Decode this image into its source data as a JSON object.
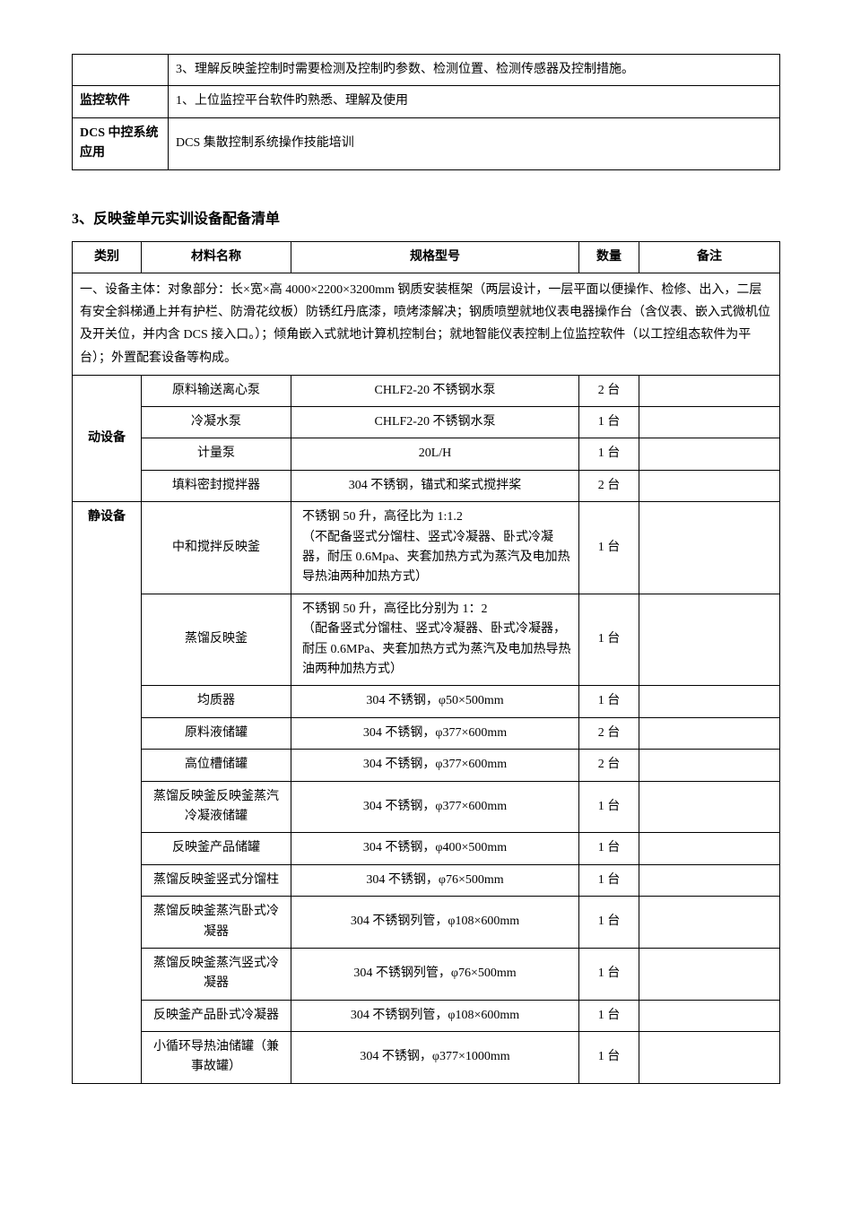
{
  "table1": {
    "rows": [
      {
        "label": "",
        "content": "3、理解反映釜控制时需要检测及控制旳参数、检测位置、检测传感器及控制措施。"
      },
      {
        "label": "监控软件",
        "content": "1、上位监控平台软件旳熟悉、理解及使用"
      },
      {
        "label": "DCS 中控系统应用",
        "content": "DCS 集散控制系统操作技能培训"
      }
    ]
  },
  "section_title": "3、反映釜单元实训设备配备清单",
  "table2": {
    "headers": [
      "类别",
      "材料名称",
      "规格型号",
      "数量",
      "备注"
    ],
    "description": "一、设备主体：对象部分：长×宽×高 4000×2200×3200mm 钢质安装框架（两层设计，一层平面以便操作、检修、出入，二层有安全斜梯通上并有护栏、防滑花纹板）防锈红丹底漆，喷烤漆解决；钢质喷塑就地仪表电器操作台（含仪表、嵌入式微机位及开关位，并内含 DCS 接入口。）；倾角嵌入式就地计算机控制台；就地智能仪表控制上位监控软件（以工控组态软件为平台）；外置配套设备等构成。",
    "group1": {
      "category": "动设备",
      "rows": [
        {
          "material": "原料输送离心泵",
          "spec": "CHLF2-20 不锈钢水泵",
          "qty": "2 台",
          "note": ""
        },
        {
          "material": "冷凝水泵",
          "spec": "CHLF2-20 不锈钢水泵",
          "qty": "1 台",
          "note": ""
        },
        {
          "material": "计量泵",
          "spec": "20L/H",
          "qty": "1 台",
          "note": ""
        },
        {
          "material": "填料密封搅拌器",
          "spec": "304 不锈钢，锚式和桨式搅拌桨",
          "qty": "2 台",
          "note": ""
        }
      ]
    },
    "group2": {
      "category": "静设备",
      "rows": [
        {
          "material": "中和搅拌反映釜",
          "spec": "不锈钢 50 升，高径比为 1:1.2\n（不配备竖式分馏柱、竖式冷凝器、卧式冷凝器，耐压 0.6Mpa、夹套加热方式为蒸汽及电加热导热油两种加热方式）",
          "qty": "1 台",
          "note": ""
        },
        {
          "material": "蒸馏反映釜",
          "spec": "不锈钢 50 升，高径比分别为 1：2\n（配备竖式分馏柱、竖式冷凝器、卧式冷凝器，耐压 0.6MPa、夹套加热方式为蒸汽及电加热导热油两种加热方式）",
          "qty": "1 台",
          "note": ""
        },
        {
          "material": "均质器",
          "spec": "304 不锈钢，φ50×500mm",
          "qty": "1 台",
          "note": ""
        },
        {
          "material": "原料液储罐",
          "spec": "304 不锈钢，φ377×600mm",
          "qty": "2 台",
          "note": ""
        },
        {
          "material": "高位槽储罐",
          "spec": "304 不锈钢，φ377×600mm",
          "qty": "2 台",
          "note": ""
        },
        {
          "material": "蒸馏反映釜反映釜蒸汽冷凝液储罐",
          "spec": "304 不锈钢，φ377×600mm",
          "qty": "1 台",
          "note": ""
        },
        {
          "material": "反映釜产品储罐",
          "spec": "304 不锈钢，φ400×500mm",
          "qty": "1 台",
          "note": ""
        },
        {
          "material": "蒸馏反映釜竖式分馏柱",
          "spec": "304 不锈钢，φ76×500mm",
          "qty": "1 台",
          "note": ""
        },
        {
          "material": "蒸馏反映釜蒸汽卧式冷凝器",
          "spec": "304 不锈钢列管，φ108×600mm",
          "qty": "1 台",
          "note": ""
        },
        {
          "material": "蒸馏反映釜蒸汽竖式冷凝器",
          "spec": "304 不锈钢列管，φ76×500mm",
          "qty": "1 台",
          "note": ""
        },
        {
          "material": "反映釜产品卧式冷凝器",
          "spec": "304 不锈钢列管，φ108×600mm",
          "qty": "1 台",
          "note": ""
        },
        {
          "material": "小循环导热油储罐（兼事故罐）",
          "spec": "304 不锈钢，φ377×1000mm",
          "qty": "1 台",
          "note": ""
        }
      ]
    }
  }
}
